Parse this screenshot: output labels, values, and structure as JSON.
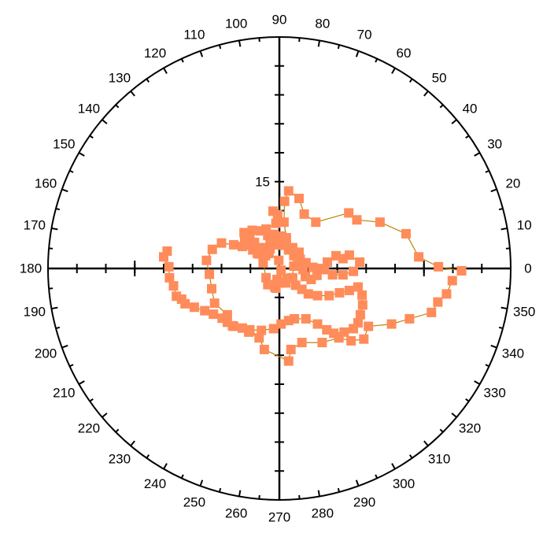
{
  "chart_data": {
    "type": "scatter",
    "projection": "polar",
    "angle_unit": "degrees",
    "angle_zero": "right",
    "angle_direction": "counterclockwise",
    "angle_tick_labels": [
      "0",
      "10",
      "20",
      "30",
      "40",
      "50",
      "60",
      "70",
      "80",
      "90",
      "100",
      "110",
      "120",
      "130",
      "140",
      "150",
      "160",
      "170",
      "180",
      "190",
      "200",
      "210",
      "220",
      "230",
      "240",
      "250",
      "260",
      "270",
      "280",
      "290",
      "300",
      "310",
      "320",
      "330",
      "340",
      "350"
    ],
    "radial_tick_labels": [
      "15"
    ],
    "radial_max": 40,
    "marker_color": "#FF8C5A",
    "line_color": "#B8860B",
    "series": [
      {
        "points": [
          {
            "x": 31.5,
            "y": -0.4
          },
          {
            "x": 27.5,
            "y": 0.3
          },
          {
            "x": 24.1,
            "y": 2.0
          },
          {
            "x": 21.9,
            "y": 6.0
          },
          {
            "x": 17.4,
            "y": 8.0
          },
          {
            "x": 13.4,
            "y": 8.4
          },
          {
            "x": 12.0,
            "y": 9.6
          },
          {
            "x": 6.3,
            "y": 8.0
          },
          {
            "x": 4.3,
            "y": 9.4
          },
          {
            "x": 3.4,
            "y": 12.1
          },
          {
            "x": 1.6,
            "y": 13.4
          },
          {
            "x": 0.9,
            "y": 11.6
          },
          {
            "x": 0.8,
            "y": 8.0
          },
          {
            "x": 1.2,
            "y": 5.3
          },
          {
            "x": 2.2,
            "y": 3.5
          },
          {
            "x": 2.5,
            "y": 0.4
          },
          {
            "x": 2.2,
            "y": -1.6
          },
          {
            "x": 1.1,
            "y": -2.5
          },
          {
            "x": -0.6,
            "y": -3.4
          },
          {
            "x": -0.4,
            "y": -1.9
          },
          {
            "x": 0.3,
            "y": -0.3
          },
          {
            "x": -0.1,
            "y": 1.4
          },
          {
            "x": -1.8,
            "y": 2.6
          },
          {
            "x": -3.9,
            "y": 3.3
          },
          {
            "x": -6.4,
            "y": 3.8
          },
          {
            "x": -7.9,
            "y": 4.1
          },
          {
            "x": -10.0,
            "y": 4.4
          },
          {
            "x": -11.6,
            "y": 3.3
          },
          {
            "x": -12.6,
            "y": 1.4
          },
          {
            "x": -12.1,
            "y": -1.0
          },
          {
            "x": -11.7,
            "y": -3.5
          },
          {
            "x": -11.2,
            "y": -6.0
          },
          {
            "x": -9.0,
            "y": -8.0
          },
          {
            "x": -7.9,
            "y": -10.0
          },
          {
            "x": -5.3,
            "y": -11.0
          },
          {
            "x": -3.5,
            "y": -12.0
          },
          {
            "x": -2.6,
            "y": -14.0
          },
          {
            "x": 1.6,
            "y": -16.0
          },
          {
            "x": 2.0,
            "y": -14.0
          },
          {
            "x": 3.9,
            "y": -12.8
          },
          {
            "x": 7.4,
            "y": -12.8
          },
          {
            "x": 10.3,
            "y": -12.0
          },
          {
            "x": 12.4,
            "y": -12.5
          },
          {
            "x": 14.6,
            "y": -12.2
          },
          {
            "x": 15.4,
            "y": -10.0
          },
          {
            "x": 19.4,
            "y": -9.6
          },
          {
            "x": 22.5,
            "y": -8.7
          },
          {
            "x": 26.3,
            "y": -7.6
          },
          {
            "x": 27.4,
            "y": -5.8
          },
          {
            "x": 28.9,
            "y": -4.4
          },
          {
            "x": 29.9,
            "y": -2.1
          }
        ]
      },
      {
        "points": [
          {
            "x": -19.4,
            "y": 3.0
          },
          {
            "x": -20.0,
            "y": 2.0
          },
          {
            "x": -19.1,
            "y": 0.3
          },
          {
            "x": -19.0,
            "y": -1.6
          },
          {
            "x": -18.3,
            "y": -3.0
          },
          {
            "x": -17.8,
            "y": -4.8
          },
          {
            "x": -16.9,
            "y": -5.3
          },
          {
            "x": -16.3,
            "y": -6.1
          },
          {
            "x": -14.7,
            "y": -6.7
          },
          {
            "x": -12.9,
            "y": -7.3
          },
          {
            "x": -11.4,
            "y": -7.9
          },
          {
            "x": -9.9,
            "y": -8.6
          },
          {
            "x": -9.0,
            "y": -9.3
          },
          {
            "x": -8.1,
            "y": -9.9
          },
          {
            "x": -6.4,
            "y": -10.3
          },
          {
            "x": -5.1,
            "y": -10.6
          },
          {
            "x": -3.1,
            "y": -10.7
          },
          {
            "x": -1.0,
            "y": -10.4
          },
          {
            "x": 0.3,
            "y": -9.6
          },
          {
            "x": 1.6,
            "y": -9.0
          },
          {
            "x": 2.6,
            "y": -8.7
          },
          {
            "x": 4.6,
            "y": -8.7
          },
          {
            "x": 6.6,
            "y": -9.6
          },
          {
            "x": 8.2,
            "y": -10.6
          },
          {
            "x": 9.4,
            "y": -11.2
          },
          {
            "x": 11.2,
            "y": -11.0
          },
          {
            "x": 12.8,
            "y": -10.4
          },
          {
            "x": 13.6,
            "y": -9.4
          },
          {
            "x": 14.0,
            "y": -8.0
          },
          {
            "x": 14.4,
            "y": -6.3
          },
          {
            "x": 14.3,
            "y": -4.6
          },
          {
            "x": 13.6,
            "y": -3.2
          },
          {
            "x": 12.1,
            "y": -3.8
          },
          {
            "x": 10.4,
            "y": -4.2
          },
          {
            "x": 8.6,
            "y": -4.7
          },
          {
            "x": 6.6,
            "y": -4.7
          },
          {
            "x": 5.0,
            "y": -4.4
          },
          {
            "x": 3.9,
            "y": -3.6
          },
          {
            "x": 2.8,
            "y": -2.9
          },
          {
            "x": 2.3,
            "y": -1.7
          },
          {
            "x": 1.3,
            "y": -1.7
          },
          {
            "x": 0.6,
            "y": -2.5
          },
          {
            "x": -0.8,
            "y": -3.2
          },
          {
            "x": -2.0,
            "y": -2.8
          },
          {
            "x": -2.3,
            "y": -1.6
          },
          {
            "x": -2.8,
            "y": 1.0
          },
          {
            "x": -3.5,
            "y": 2.5
          },
          {
            "x": -4.6,
            "y": 3.2
          },
          {
            "x": -5.7,
            "y": 4.4
          },
          {
            "x": -6.0,
            "y": 5.4
          },
          {
            "x": -6.1,
            "y": 6.2
          }
        ]
      },
      {
        "points": [
          {
            "x": -4.7,
            "y": 6.6
          },
          {
            "x": -3.3,
            "y": 6.5
          },
          {
            "x": -2.0,
            "y": 5.7
          },
          {
            "x": -0.8,
            "y": 5.4
          },
          {
            "x": 0.4,
            "y": 5.6
          },
          {
            "x": 1.2,
            "y": 4.7
          },
          {
            "x": 2.3,
            "y": 3.6
          },
          {
            "x": 3.4,
            "y": 2.8
          },
          {
            "x": 3.6,
            "y": 1.6
          },
          {
            "x": 4.0,
            "y": 0.6
          },
          {
            "x": 4.1,
            "y": -0.2
          },
          {
            "x": 4.5,
            "y": -1.4
          },
          {
            "x": 5.5,
            "y": -1.9
          },
          {
            "x": 6.5,
            "y": -1.2
          },
          {
            "x": 7.1,
            "y": 0.0
          },
          {
            "x": 8.3,
            "y": 1.1
          },
          {
            "x": 9.8,
            "y": 2.2
          },
          {
            "x": 11.0,
            "y": 1.7
          },
          {
            "x": 12.1,
            "y": 2.3
          },
          {
            "x": 13.9,
            "y": 1.1
          },
          {
            "x": 12.8,
            "y": -0.5
          },
          {
            "x": 11.0,
            "y": -1.1
          },
          {
            "x": 9.2,
            "y": -1.1
          },
          {
            "x": 7.8,
            "y": -0.2
          },
          {
            "x": 5.8,
            "y": 0.2
          },
          {
            "x": 4.6,
            "y": 1.0
          },
          {
            "x": 3.4,
            "y": 1.4
          },
          {
            "x": 2.5,
            "y": 2.2
          },
          {
            "x": 1.6,
            "y": 3.2
          },
          {
            "x": 0.5,
            "y": 4.0
          },
          {
            "x": -0.3,
            "y": 4.8
          },
          {
            "x": -1.6,
            "y": 4.3
          },
          {
            "x": -2.5,
            "y": 3.6
          },
          {
            "x": -3.5,
            "y": 3.6
          },
          {
            "x": -4.3,
            "y": 4.5
          },
          {
            "x": -5.1,
            "y": 5.4
          },
          {
            "x": -4.8,
            "y": 4.0
          },
          {
            "x": -3.8,
            "y": 2.6
          },
          {
            "x": -2.4,
            "y": 2.2
          },
          {
            "x": -1.6,
            "y": 3.4
          },
          {
            "x": -0.8,
            "y": 4.1
          },
          {
            "x": -1.1,
            "y": 5.9
          },
          {
            "x": -2.3,
            "y": 6.8
          },
          {
            "x": -0.6,
            "y": 7.8
          },
          {
            "x": -0.3,
            "y": 9.3
          },
          {
            "x": -1.1,
            "y": 9.9
          }
        ]
      }
    ]
  }
}
